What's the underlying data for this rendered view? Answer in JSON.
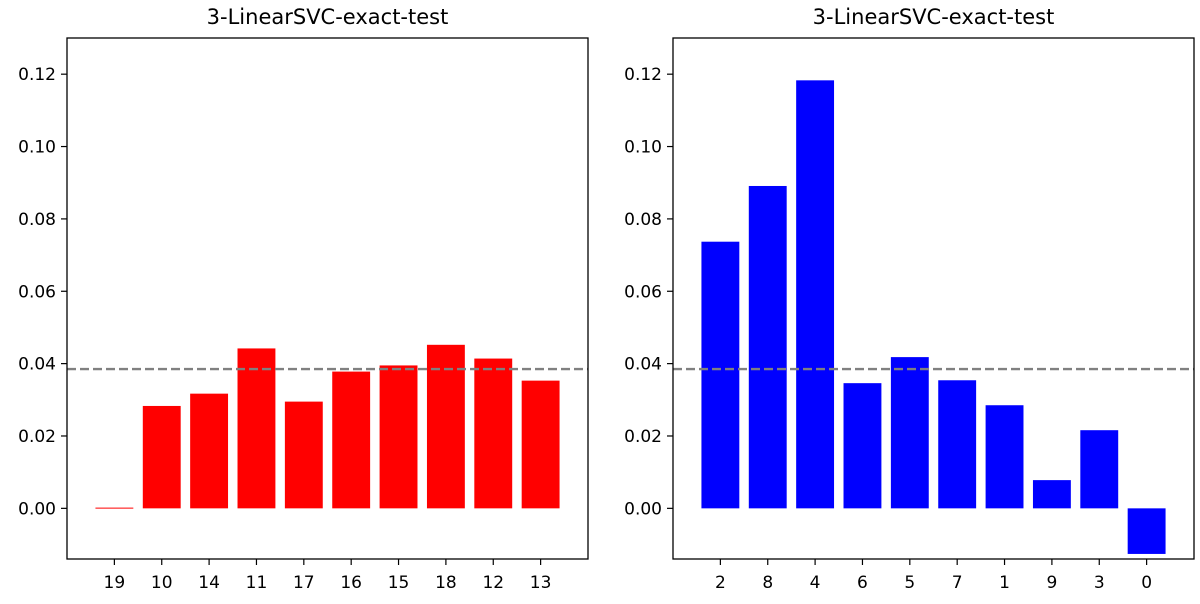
{
  "chart_data": [
    {
      "type": "bar",
      "title": "3-LinearSVC-exact-test",
      "xlabel": "",
      "ylabel": "",
      "categories": [
        "19",
        "10",
        "14",
        "11",
        "17",
        "16",
        "15",
        "18",
        "12",
        "13"
      ],
      "values": [
        0.0002,
        0.0283,
        0.0317,
        0.0442,
        0.0295,
        0.0378,
        0.0395,
        0.0452,
        0.0414,
        0.0353
      ],
      "color": "#ff0000",
      "reference_line": {
        "value": 0.0385,
        "color": "#808080",
        "style": "dashed"
      },
      "ylim": [
        -0.014,
        0.13
      ],
      "yticks": [
        "0.00",
        "0.02",
        "0.04",
        "0.06",
        "0.08",
        "0.10",
        "0.12"
      ],
      "ytick_values": [
        0.0,
        0.02,
        0.04,
        0.06,
        0.08,
        0.1,
        0.12
      ],
      "grid": false
    },
    {
      "type": "bar",
      "title": "3-LinearSVC-exact-test",
      "xlabel": "",
      "ylabel": "",
      "categories": [
        "2",
        "8",
        "4",
        "6",
        "5",
        "7",
        "1",
        "9",
        "3",
        "0"
      ],
      "values": [
        0.0737,
        0.0891,
        0.1183,
        0.0346,
        0.0418,
        0.0354,
        0.0285,
        0.0078,
        0.0216,
        -0.0126
      ],
      "color": "#0000ff",
      "reference_line": {
        "value": 0.0385,
        "color": "#808080",
        "style": "dashed"
      },
      "ylim": [
        -0.014,
        0.13
      ],
      "yticks": [
        "0.00",
        "0.02",
        "0.04",
        "0.06",
        "0.08",
        "0.10",
        "0.12"
      ],
      "ytick_values": [
        0.0,
        0.02,
        0.04,
        0.06,
        0.08,
        0.1,
        0.12
      ],
      "grid": false
    }
  ]
}
